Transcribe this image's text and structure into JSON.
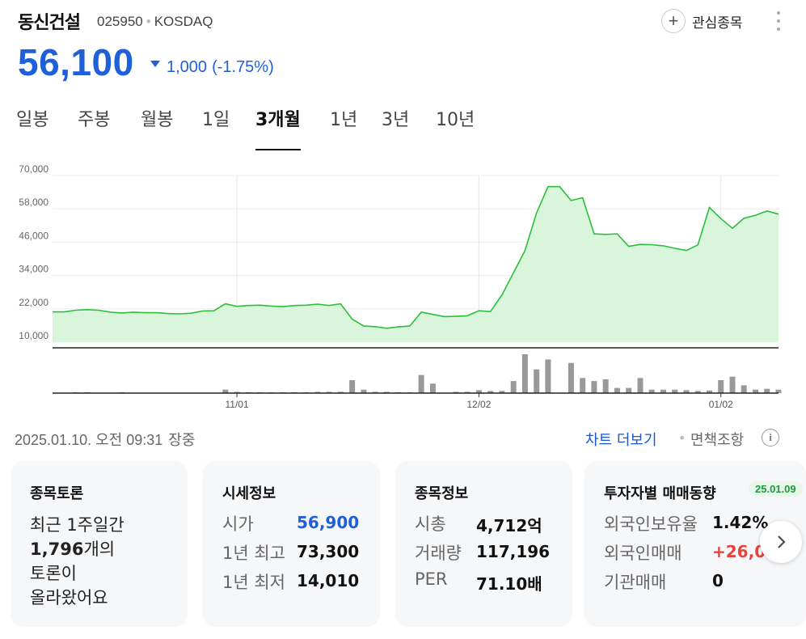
{
  "header": {
    "name": "동신건설",
    "code": "025950",
    "market": "KOSDAQ",
    "watchlist_label": "관심종목",
    "watchlist_icon": "plus-icon",
    "more_icon": "more-vertical-icon"
  },
  "quote": {
    "price": "56,100",
    "change": "1,000",
    "change_pct": "(-1.75%)",
    "direction": "down",
    "color_down": "#1f5fd8",
    "color_up": "#e8423c"
  },
  "tabs": [
    {
      "label": "일봉",
      "active": false
    },
    {
      "label": "주봉",
      "active": false
    },
    {
      "label": "월봉",
      "active": false
    },
    {
      "label": "1일",
      "active": false
    },
    {
      "label": "3개월",
      "active": true
    },
    {
      "label": "1년",
      "active": false
    },
    {
      "label": "3년",
      "active": false
    },
    {
      "label": "10년",
      "active": false
    }
  ],
  "chart_data": {
    "type": "area",
    "y_ticks": [
      "70,000",
      "58,000",
      "46,000",
      "34,000",
      "22,000",
      "10,000"
    ],
    "ylim": [
      10000,
      70000
    ],
    "x_ticks": [
      "11/01",
      "12/02",
      "01/02"
    ],
    "grid": true,
    "line_color": "#2bbf3a",
    "fill_color": "#d9f5dc",
    "volume_color": "#999999",
    "series": [
      {
        "values": [
          20900,
          20900,
          21500,
          21700,
          21500,
          20800,
          20500,
          20800,
          20600,
          20600,
          20300,
          20200,
          20400,
          21200,
          21300,
          23800,
          22900,
          23200,
          23300,
          23000,
          22800,
          23200,
          23300,
          23700,
          23200,
          23800,
          18300,
          15800,
          15600,
          15000,
          15500,
          15800,
          20800,
          20000,
          19200,
          19300,
          19500,
          21300,
          21000,
          27000,
          35000,
          43000,
          56500,
          66000,
          66000,
          61000,
          62000,
          49000,
          48800,
          49000,
          44500,
          45200,
          45100,
          44700,
          43800,
          43000,
          45000,
          58500,
          54500,
          51000,
          54600,
          55700,
          57200,
          56100
        ]
      }
    ],
    "volume": [
      0,
      0,
      2,
      2,
      0,
      0,
      2,
      0,
      0,
      0,
      0,
      0,
      0,
      0,
      0,
      8,
      3,
      2,
      2,
      2,
      2,
      2,
      2,
      3,
      3,
      3,
      30,
      8,
      3,
      3,
      2,
      2,
      42,
      22,
      0,
      3,
      3,
      7,
      5,
      5,
      28,
      90,
      55,
      78,
      0,
      70,
      35,
      28,
      32,
      12,
      12,
      35,
      8,
      8,
      8,
      7,
      5,
      6,
      30,
      38,
      18,
      8,
      10,
      8
    ]
  },
  "info": {
    "date": "2025.01.10. 오전 09:31",
    "session": "장중",
    "chart_more_label": "차트 더보기",
    "disclaimer_label": "면책조항",
    "info_icon": "info-icon"
  },
  "cards": {
    "discussion": {
      "title": "종목토론",
      "line1": "최근 1주일간",
      "count": "1,796",
      "line2_suffix": "개의",
      "line3": "토론이",
      "line4": "올라왔어요"
    },
    "market": {
      "title": "시세정보",
      "rows": [
        {
          "label": "시가",
          "value": "56,900"
        },
        {
          "label": "1년 최고",
          "value": "73,300"
        },
        {
          "label": "1년 최저",
          "value": "14,010"
        }
      ]
    },
    "stock": {
      "title": "종목정보",
      "rows": [
        {
          "label": "시총",
          "value": "4,712억"
        },
        {
          "label": "거래량",
          "value": "117,196"
        },
        {
          "label": "PER",
          "value": "71.10배"
        }
      ]
    },
    "investor": {
      "title": "투자자별 매매동향",
      "badge": "25.01.09",
      "rows": [
        {
          "label": "외국인보유율",
          "value": "1.42%"
        },
        {
          "label": "외국인매매",
          "value": "+26,04"
        },
        {
          "label": "기관매매",
          "value": "0"
        }
      ]
    },
    "next_icon": "chevron-right-icon"
  }
}
